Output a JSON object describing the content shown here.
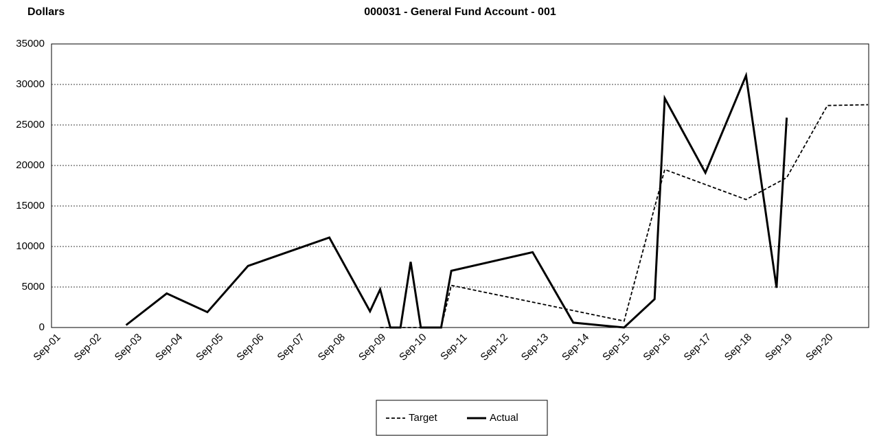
{
  "chart_data": {
    "type": "line",
    "title": "000031 - General Fund Account - 001",
    "y_label": "Dollars",
    "xticks": [
      "Sep-01",
      "Sep-02",
      "Sep-03",
      "Sep-04",
      "Sep-05",
      "Sep-06",
      "Sep-07",
      "Sep-08",
      "Sep-09",
      "Sep-10",
      "Sep-11",
      "Sep-12",
      "Sep-13",
      "Sep-14",
      "Sep-15",
      "Sep-16",
      "Sep-17",
      "Sep-18",
      "Sep-19",
      "Sep-20"
    ],
    "ylim": [
      0,
      35000
    ],
    "yticks": [
      0,
      5000,
      10000,
      15000,
      20000,
      25000,
      30000,
      35000
    ],
    "grid": true,
    "legend": "bottom",
    "series": [
      {
        "name": "Target",
        "color": "#000000",
        "dashed": true,
        "x": [
          "Sep-09",
          "Mar-11",
          "Jun-11",
          "Sep-15",
          "Sep-16",
          "Sep-18",
          "Sep-19",
          "Sep-20",
          "Sep-21"
        ],
        "values": [
          0,
          0,
          5200,
          800,
          19500,
          15800,
          18500,
          27400,
          27500
        ]
      },
      {
        "name": "Actual",
        "color": "#000000",
        "dashed": false,
        "x": [
          "Jun-03",
          "Jun-04",
          "Jun-05",
          "Jun-06",
          "Jun-08",
          "Jun-09",
          "Sep-09",
          "Dec-09",
          "Mar-10",
          "Jun-10",
          "Sep-10",
          "Mar-11",
          "Jun-11",
          "Jun-13",
          "Jun-14",
          "Sep-15",
          "Jun-16",
          "Sep-16",
          "Sep-17",
          "Sep-18",
          "Jun-19",
          "Sep-19"
        ],
        "values": [
          300,
          4200,
          1900,
          7600,
          11100,
          2000,
          4700,
          0,
          0,
          8100,
          0,
          0,
          7000,
          9300,
          600,
          0,
          3500,
          28300,
          19100,
          31100,
          4900,
          25900
        ]
      }
    ]
  }
}
